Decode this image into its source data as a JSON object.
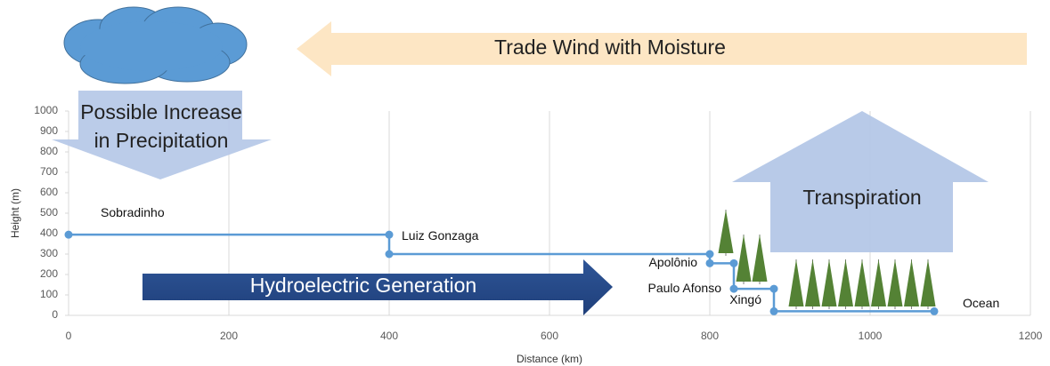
{
  "chart_data": {
    "type": "line",
    "x_label": "Distance (km)",
    "y_label": "Height (m)",
    "x": [
      0,
      400,
      400,
      800,
      800,
      830,
      830,
      880,
      880,
      1080
    ],
    "series": [
      {
        "color": "#5b9bd5",
        "values": [
          395,
          395,
          300,
          300,
          255,
          255,
          130,
          130,
          20,
          20
        ]
      }
    ],
    "point_labels": [
      "Sobradinho",
      "Luiz Gonzaga",
      null,
      null,
      "Apolônio",
      null,
      "Paulo Afonso",
      null,
      "Xingó",
      "Ocean"
    ],
    "xlim": [
      0,
      1200
    ],
    "xticks": [
      0,
      200,
      400,
      600,
      800,
      1000,
      1200
    ],
    "ylim": [
      0,
      1000
    ],
    "yticks": [
      0,
      100,
      200,
      300,
      400,
      500,
      600,
      700,
      800,
      900,
      1000
    ],
    "grid": true,
    "annotations": {
      "wind": "Trade Wind with Moisture",
      "precipitation": [
        "Possible Increase",
        "in Precipitation"
      ],
      "hydro": "Hydroelectric Generation",
      "transpiration": "Transpiration"
    }
  }
}
